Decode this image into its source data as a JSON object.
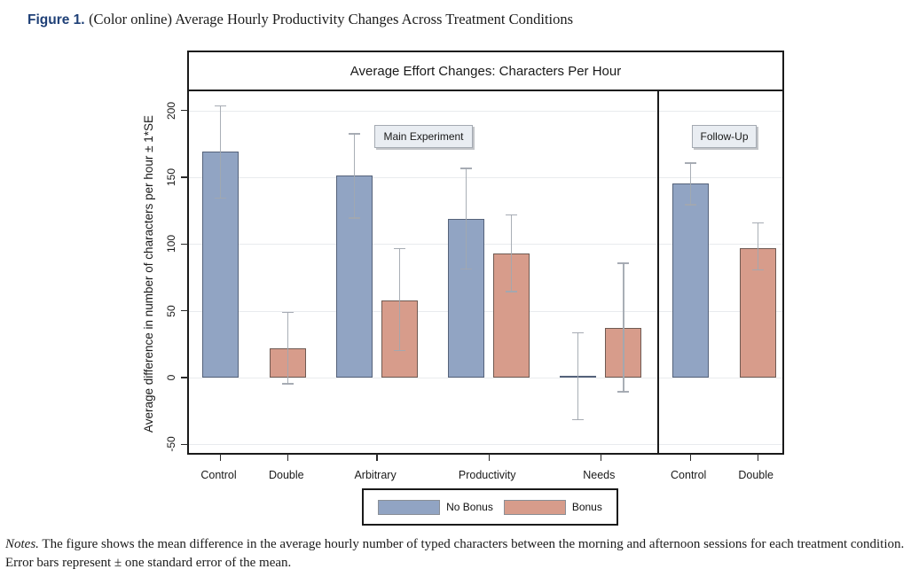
{
  "figure_caption": {
    "label": "Figure 1.",
    "text": "(Color online) Average Hourly Productivity Changes Across Treatment Conditions"
  },
  "chart_data": {
    "type": "bar",
    "title": "Average Effort Changes: Characters Per Hour",
    "ylabel": "Average difference in number of characters per hour ± 1*SE",
    "ylim": [
      -60,
      215
    ],
    "y_ticks": [
      -50,
      0,
      50,
      100,
      150,
      200
    ],
    "grid": true,
    "categories": [
      "Control",
      "Double",
      "Arbitrary",
      "Productivity",
      "Needs",
      "Control",
      "Double"
    ],
    "sections": [
      {
        "label": "Main Experiment",
        "categories": [
          "Control",
          "Double",
          "Arbitrary",
          "Productivity",
          "Needs"
        ]
      },
      {
        "label": "Follow-Up",
        "categories": [
          "Control",
          "Double"
        ]
      }
    ],
    "legend": {
      "position": "bottom",
      "entries": [
        {
          "name": "No Bonus",
          "color": "#91a4c3"
        },
        {
          "name": "Bonus",
          "color": "#d79c8b"
        }
      ]
    },
    "bars": [
      {
        "category": "Control",
        "section": "Main Experiment",
        "series": "No Bonus",
        "value": 169,
        "err_low": 134,
        "err_high": 204
      },
      {
        "category": "Double",
        "section": "Main Experiment",
        "series": "Bonus",
        "value": 22,
        "err_low": -5,
        "err_high": 49
      },
      {
        "category": "Arbitrary",
        "section": "Main Experiment",
        "series": "No Bonus",
        "value": 151,
        "err_low": 119,
        "err_high": 183
      },
      {
        "category": "Arbitrary",
        "section": "Main Experiment",
        "series": "Bonus",
        "value": 58,
        "err_low": 20,
        "err_high": 97
      },
      {
        "category": "Productivity",
        "section": "Main Experiment",
        "series": "No Bonus",
        "value": 119,
        "err_low": 81,
        "err_high": 157
      },
      {
        "category": "Productivity",
        "section": "Main Experiment",
        "series": "Bonus",
        "value": 93,
        "err_low": 64,
        "err_high": 122
      },
      {
        "category": "Needs",
        "section": "Main Experiment",
        "series": "No Bonus",
        "value": 1,
        "err_low": -32,
        "err_high": 34
      },
      {
        "category": "Needs",
        "section": "Main Experiment",
        "series": "Bonus",
        "value": 37,
        "err_low": -11,
        "err_high": 86
      },
      {
        "category": "Control",
        "section": "Follow-Up",
        "series": "No Bonus",
        "value": 145,
        "err_low": 129,
        "err_high": 161
      },
      {
        "category": "Double",
        "section": "Follow-Up",
        "series": "Bonus",
        "value": 97,
        "err_low": 80,
        "err_high": 116
      }
    ]
  },
  "colors": {
    "no_bonus_fill": "#91a4c3",
    "no_bonus_border": "#55627a",
    "bonus_fill": "#d79c8b",
    "bonus_border": "#6f5a52",
    "caption_accent": "#1f4077",
    "error_bar": "#a2a8b0",
    "gridline": "#e9ebee"
  },
  "notes": {
    "label": "Notes.",
    "text": "The figure shows the mean difference in the average hourly number of typed characters between the morning and afternoon sessions for each treatment condition. Error bars represent ± one standard error of the mean."
  }
}
